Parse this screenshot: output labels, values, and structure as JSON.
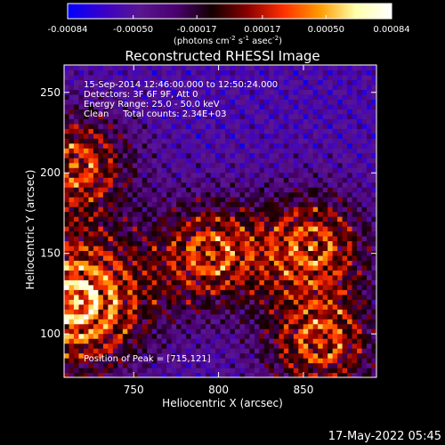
{
  "chart_data": {
    "type": "heatmap",
    "title": "Reconstructed RHESSI Image",
    "xlabel": "Heliocentric X (arcsec)",
    "ylabel": "Heliocentric Y (arcsec)",
    "x_range": [
      709,
      893
    ],
    "y_range": [
      73,
      267
    ],
    "x_ticks": [
      750,
      800,
      850
    ],
    "y_ticks": [
      100,
      150,
      200,
      250
    ],
    "colorbar": {
      "range": [
        -0.00084,
        0.00084
      ],
      "tick_labels": [
        "-0.00084",
        "-0.00050",
        "-0.00017",
        "0.00017",
        "0.00050",
        "0.00084"
      ],
      "unit_parts": [
        "(photons cm",
        "-2",
        " s",
        "-1",
        " asec",
        "-2",
        ")"
      ],
      "colormap": [
        "#0000ff",
        "#3a00c8",
        "#5a1690",
        "#4a0070",
        "#120000",
        "#8a0000",
        "#ff3000",
        "#ff9a00",
        "#ffffaa",
        "#ffffff"
      ]
    },
    "annotations": [
      "15-Sep-2014 12:46:00.000 to 12:50:24.000",
      "Detectors: 3F 6F 9F, Att 0",
      "Energy Range: 25.0 - 50.0 keV",
      "Clean     Total counts: 2.34E+03"
    ],
    "peak_label": "Position of Peak = [715,121]",
    "peak": [
      715,
      121
    ],
    "bright_sources": [
      {
        "x": 716,
        "y": 120
      },
      {
        "x": 715,
        "y": 205
      },
      {
        "x": 795,
        "y": 150
      },
      {
        "x": 855,
        "y": 155
      },
      {
        "x": 860,
        "y": 95
      }
    ]
  },
  "footer": {
    "timestamp": "17-May-2022 05:45"
  }
}
